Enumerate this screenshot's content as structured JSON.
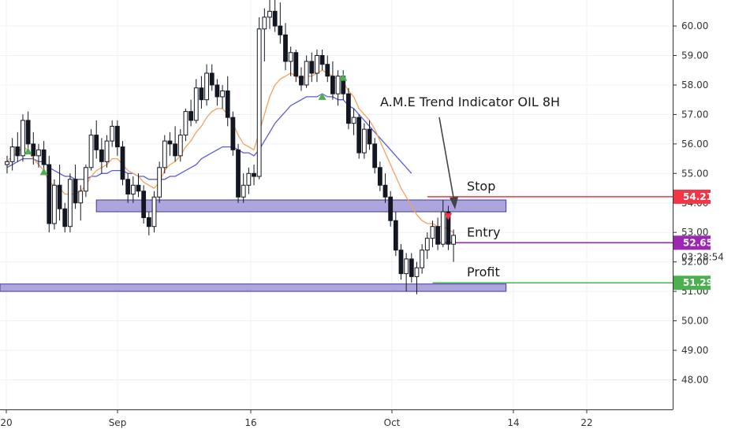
{
  "chart_data": {
    "type": "candlestick",
    "title": "A.M.E Trend Indicator OIL 8H",
    "ylim": [
      47.2,
      61.0
    ],
    "y_ticks": [
      "48.00",
      "49.00",
      "50.00",
      "51.00",
      "52.00",
      "53.00",
      "54.00",
      "55.00",
      "56.00",
      "57.00",
      "58.00",
      "59.00",
      "60.00"
    ],
    "x_ticks": [
      "20",
      "Sep",
      "16",
      "Oct",
      "14",
      "22"
    ],
    "countdown": "03:28:54",
    "candles": [
      [
        55.3,
        55.6,
        55.0,
        55.4
      ],
      [
        55.4,
        56.2,
        55.1,
        55.9
      ],
      [
        55.9,
        56.4,
        55.4,
        55.6
      ],
      [
        55.6,
        57.0,
        55.4,
        56.8
      ],
      [
        56.8,
        57.1,
        55.8,
        56.0
      ],
      [
        56.0,
        56.4,
        55.3,
        55.6
      ],
      [
        55.6,
        56.0,
        55.2,
        55.8
      ],
      [
        55.8,
        56.1,
        55.0,
        55.3
      ],
      [
        55.3,
        55.6,
        53.0,
        53.3
      ],
      [
        53.3,
        54.8,
        53.1,
        54.6
      ],
      [
        54.6,
        55.3,
        53.4,
        53.8
      ],
      [
        53.8,
        54.0,
        53.0,
        53.2
      ],
      [
        53.2,
        55.0,
        53.0,
        54.8
      ],
      [
        54.8,
        55.3,
        53.8,
        54.0
      ],
      [
        54.0,
        54.6,
        53.4,
        54.4
      ],
      [
        54.4,
        55.3,
        54.2,
        55.2
      ],
      [
        55.2,
        56.5,
        55.1,
        56.3
      ],
      [
        56.3,
        56.8,
        55.5,
        55.8
      ],
      [
        55.8,
        56.2,
        55.0,
        55.4
      ],
      [
        55.4,
        56.3,
        55.2,
        56.1
      ],
      [
        56.1,
        56.8,
        55.9,
        56.6
      ],
      [
        56.6,
        56.8,
        55.6,
        55.9
      ],
      [
        55.9,
        56.1,
        54.6,
        54.8
      ],
      [
        54.8,
        55.0,
        54.0,
        54.3
      ],
      [
        54.3,
        54.9,
        54.0,
        54.6
      ],
      [
        54.6,
        55.0,
        54.2,
        54.4
      ],
      [
        54.4,
        54.6,
        53.3,
        53.5
      ],
      [
        53.5,
        53.7,
        52.9,
        53.2
      ],
      [
        53.2,
        54.4,
        53.0,
        54.2
      ],
      [
        54.2,
        55.4,
        54.0,
        55.2
      ],
      [
        55.2,
        56.3,
        55.0,
        56.1
      ],
      [
        56.1,
        56.4,
        55.6,
        56.0
      ],
      [
        56.0,
        56.6,
        55.4,
        55.6
      ],
      [
        55.6,
        56.5,
        55.4,
        56.3
      ],
      [
        56.3,
        57.2,
        56.1,
        57.1
      ],
      [
        57.1,
        57.5,
        56.6,
        56.8
      ],
      [
        56.8,
        58.2,
        56.7,
        57.9
      ],
      [
        57.9,
        58.3,
        57.2,
        57.5
      ],
      [
        57.5,
        58.7,
        57.3,
        58.4
      ],
      [
        58.4,
        58.7,
        57.8,
        58.0
      ],
      [
        58.0,
        58.2,
        57.3,
        57.6
      ],
      [
        57.6,
        58.0,
        57.2,
        57.8
      ],
      [
        57.8,
        58.3,
        56.6,
        56.9
      ],
      [
        56.9,
        57.1,
        55.6,
        55.8
      ],
      [
        55.8,
        56.0,
        54.0,
        54.2
      ],
      [
        54.2,
        55.0,
        54.0,
        54.6
      ],
      [
        54.6,
        55.2,
        54.3,
        55.0
      ],
      [
        55.0,
        55.3,
        54.6,
        54.9
      ],
      [
        54.9,
        60.3,
        54.8,
        59.9
      ],
      [
        59.9,
        60.6,
        58.8,
        60.3
      ],
      [
        60.3,
        61.0,
        59.9,
        60.5
      ],
      [
        60.5,
        61.1,
        59.8,
        60.0
      ],
      [
        60.0,
        60.8,
        59.4,
        59.7
      ],
      [
        59.7,
        60.1,
        58.5,
        58.8
      ],
      [
        58.8,
        59.3,
        58.3,
        59.1
      ],
      [
        59.1,
        59.2,
        58.1,
        58.3
      ],
      [
        58.3,
        58.6,
        57.8,
        58.0
      ],
      [
        58.0,
        59.0,
        57.9,
        58.8
      ],
      [
        58.8,
        59.1,
        58.1,
        58.4
      ],
      [
        58.4,
        59.2,
        58.1,
        59.0
      ],
      [
        59.0,
        59.2,
        58.5,
        58.7
      ],
      [
        58.7,
        59.0,
        58.1,
        58.3
      ],
      [
        58.3,
        58.8,
        57.5,
        57.7
      ],
      [
        57.7,
        58.5,
        57.3,
        58.3
      ],
      [
        58.3,
        58.5,
        57.5,
        57.7
      ],
      [
        57.7,
        57.9,
        56.5,
        56.7
      ],
      [
        56.7,
        57.2,
        56.3,
        56.9
      ],
      [
        56.9,
        57.0,
        55.5,
        55.7
      ],
      [
        55.7,
        56.7,
        55.5,
        56.5
      ],
      [
        56.5,
        56.8,
        55.8,
        56.0
      ],
      [
        56.0,
        56.2,
        55.0,
        55.2
      ],
      [
        55.2,
        55.4,
        54.4,
        54.6
      ],
      [
        54.6,
        55.0,
        54.0,
        54.2
      ],
      [
        54.2,
        54.4,
        53.2,
        53.4
      ],
      [
        53.4,
        53.7,
        52.2,
        52.4
      ],
      [
        52.4,
        52.6,
        51.4,
        51.6
      ],
      [
        51.6,
        52.3,
        51.0,
        52.1
      ],
      [
        52.1,
        52.3,
        51.3,
        51.5
      ],
      [
        51.5,
        52.0,
        50.9,
        51.8
      ],
      [
        51.8,
        52.6,
        51.6,
        52.4
      ],
      [
        52.4,
        53.0,
        52.1,
        52.8
      ],
      [
        52.8,
        53.4,
        52.5,
        53.2
      ],
      [
        53.2,
        53.5,
        52.4,
        52.6
      ],
      [
        52.6,
        54.1,
        52.5,
        53.7
      ],
      [
        53.7,
        53.9,
        52.4,
        52.6
      ],
      [
        52.6,
        53.1,
        52.0,
        52.9
      ]
    ],
    "ema_fast": [
      55.4,
      55.6,
      55.7,
      55.9,
      55.8,
      55.5,
      55.3,
      55.1,
      54.7,
      54.6,
      54.5,
      54.3,
      54.3,
      54.3,
      54.4,
      54.6,
      54.9,
      55.1,
      55.2,
      55.3,
      55.5,
      55.5,
      55.3,
      55.1,
      55.0,
      54.9,
      54.7,
      54.6,
      54.5,
      54.7,
      55.1,
      55.3,
      55.4,
      55.6,
      55.9,
      56.1,
      56.4,
      56.6,
      56.9,
      57.1,
      57.2,
      57.2,
      57.0,
      56.7,
      56.3,
      56.0,
      55.9,
      55.8,
      56.4,
      57.0,
      57.6,
      58.0,
      58.2,
      58.3,
      58.4,
      58.3,
      58.2,
      58.3,
      58.3,
      58.4,
      58.5,
      58.4,
      58.3,
      58.2,
      58.1,
      57.8,
      57.6,
      57.2,
      57.0,
      56.8,
      56.5,
      56.1,
      55.7,
      55.3,
      54.9,
      54.5,
      54.2,
      53.9,
      53.6,
      53.4,
      53.3,
      53.3,
      53.2,
      53.2,
      53.1,
      53.0
    ],
    "ema_slow": [
      55.2,
      55.3,
      55.4,
      55.5,
      55.5,
      55.5,
      55.4,
      55.4,
      55.2,
      55.1,
      55.0,
      54.9,
      54.9,
      54.8,
      54.8,
      54.8,
      54.9,
      54.9,
      55.0,
      55.0,
      55.1,
      55.1,
      55.1,
      55.0,
      55.0,
      54.9,
      54.9,
      54.8,
      54.8,
      54.8,
      54.8,
      54.9,
      54.9,
      55.0,
      55.1,
      55.2,
      55.3,
      55.5,
      55.6,
      55.7,
      55.8,
      55.9,
      55.9,
      55.9,
      55.8,
      55.7,
      55.7,
      55.6,
      55.8,
      56.1,
      56.4,
      56.7,
      56.9,
      57.1,
      57.3,
      57.4,
      57.5,
      57.6,
      57.6,
      57.6,
      57.7,
      57.6,
      57.6,
      57.5,
      57.5,
      57.3,
      57.2,
      57.0,
      56.8,
      56.6,
      56.4,
      56.2,
      56.0,
      55.8,
      55.6,
      55.4,
      55.2,
      55.0
    ],
    "signals": [
      {
        "type": "buy",
        "index": 4,
        "price": 55.75
      },
      {
        "type": "buy",
        "index": 7,
        "price": 55.05
      },
      {
        "type": "buy",
        "index": 60,
        "price": 57.6
      },
      {
        "type": "buy",
        "index": 64,
        "price": 58.25
      },
      {
        "type": "sell",
        "index": 84,
        "price": 53.55
      }
    ],
    "zones": [
      {
        "name": "resistance-zone",
        "from_index": 17,
        "to_index": 95,
        "low": 53.7,
        "high": 54.1
      },
      {
        "name": "support-zone",
        "from_index": -4,
        "to_index": 95,
        "low": 51.0,
        "high": 51.25
      }
    ],
    "levels": [
      {
        "label": "Stop",
        "value": "54.21",
        "price": 54.21,
        "color": "#f23645",
        "from_index": 80
      },
      {
        "label": "Entry",
        "value": "52.65",
        "price": 52.65,
        "color": "#9c27b0",
        "from_index": 82
      },
      {
        "label": "Profit",
        "value": "51.29",
        "price": 51.29,
        "color": "#4caf50",
        "from_index": 81
      }
    ]
  },
  "colors": {
    "candle": "#131722",
    "ema_fast": "#f5a15d",
    "ema_slow": "#5b5bd6",
    "zone_fill": "#9f97d8",
    "zone_stroke": "#3f3a9c",
    "buy": "#4caf50",
    "sell": "#f23645",
    "grid": "#eef0f5",
    "axis": "#333333",
    "arrow": "#444444"
  }
}
